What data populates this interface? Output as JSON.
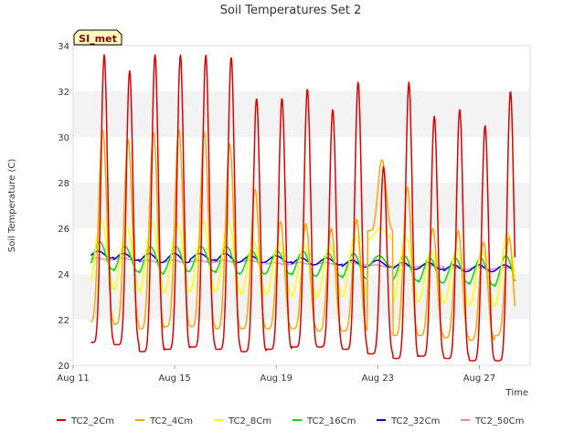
{
  "chart_data": {
    "type": "line",
    "title": "Soil Temperatures Set 2",
    "xlabel": "Time",
    "ylabel": "Soil Temperature (C)",
    "station_label": "SI_met",
    "x_range": [
      "2023-08-11",
      "2023-08-29"
    ],
    "xticks": [
      {
        "date": "2023-08-11",
        "label": "Aug 11"
      },
      {
        "date": "2023-08-15",
        "label": "Aug 15"
      },
      {
        "date": "2023-08-19",
        "label": "Aug 19"
      },
      {
        "date": "2023-08-23",
        "label": "Aug 23"
      },
      {
        "date": "2023-08-27",
        "label": "Aug 27"
      }
    ],
    "ylim": [
      20,
      34
    ],
    "yticks": [
      20,
      22,
      24,
      26,
      28,
      30,
      32,
      34
    ],
    "grid": "horizontal banded",
    "legend": "bottom",
    "series": [
      {
        "name": "TC2_2Cm",
        "color": "#dd0000",
        "max": [
          33.6,
          32.9,
          33.6,
          33.6,
          33.6,
          33.5,
          31.7,
          31.7,
          32.1,
          31.2,
          32.4,
          28.7,
          32.4,
          30.9,
          31.2,
          30.5,
          32.0
        ],
        "min": [
          21.0,
          20.9,
          20.6,
          20.7,
          20.8,
          20.7,
          20.6,
          20.7,
          20.8,
          20.8,
          20.7,
          20.5,
          20.3,
          20.4,
          20.3,
          20.2,
          20.2
        ]
      },
      {
        "name": "TC2_4Cm",
        "color": "#ffa500",
        "max": [
          30.3,
          29.9,
          30.2,
          30.3,
          30.2,
          29.7,
          27.7,
          26.3,
          26.2,
          26.0,
          26.4,
          29.0,
          27.8,
          26.0,
          25.9,
          25.4,
          25.6
        ],
        "min": [
          21.9,
          21.8,
          21.6,
          21.7,
          21.7,
          21.6,
          21.6,
          21.6,
          21.6,
          21.5,
          21.5,
          25.9,
          21.3,
          21.3,
          21.2,
          21.1,
          21.3
        ]
      },
      {
        "name": "TC2_8Cm",
        "color": "#ffff00",
        "max": [
          26.4,
          26.1,
          26.3,
          26.2,
          26.3,
          26.3,
          25.4,
          25.4,
          25.3,
          25.3,
          25.7,
          26.0,
          25.6,
          25.0,
          25.1,
          25.0,
          25.8
        ],
        "min": [
          23.4,
          23.3,
          23.2,
          23.2,
          23.2,
          23.2,
          23.1,
          23.1,
          23.0,
          23.0,
          23.0,
          25.5,
          22.8,
          22.8,
          22.7,
          22.6,
          22.6
        ]
      },
      {
        "name": "TC2_16Cm",
        "color": "#00dd00",
        "max": [
          25.4,
          25.2,
          25.2,
          25.2,
          25.2,
          25.2,
          25.0,
          25.0,
          25.0,
          24.9,
          24.9,
          24.8,
          24.8,
          24.7,
          24.7,
          24.7,
          24.8
        ],
        "min": [
          24.2,
          24.1,
          24.0,
          24.1,
          24.1,
          24.0,
          24.0,
          24.0,
          23.9,
          23.9,
          23.8,
          24.3,
          23.7,
          23.6,
          23.6,
          23.5,
          23.4
        ]
      },
      {
        "name": "TC2_32Cm",
        "color": "#0000cc",
        "max": [
          25.0,
          24.9,
          24.9,
          24.9,
          24.9,
          24.9,
          24.8,
          24.8,
          24.7,
          24.7,
          24.6,
          24.6,
          24.5,
          24.5,
          24.4,
          24.4,
          24.4
        ],
        "min": [
          24.7,
          24.6,
          24.5,
          24.5,
          24.6,
          24.5,
          24.5,
          24.5,
          24.4,
          24.4,
          24.3,
          24.3,
          24.2,
          24.2,
          24.1,
          24.1,
          24.1
        ]
      },
      {
        "name": "TC2_50Cm",
        "color": "#dd88dd",
        "max": [
          24.7,
          24.7,
          24.6,
          24.6,
          24.6,
          24.6,
          24.6,
          24.5,
          24.5,
          24.5,
          24.5,
          24.4,
          24.4,
          24.4,
          24.3,
          24.3,
          24.3
        ],
        "min": [
          24.6,
          24.6,
          24.5,
          24.5,
          24.5,
          24.5,
          24.5,
          24.4,
          24.4,
          24.4,
          24.4,
          24.3,
          24.3,
          24.3,
          24.2,
          24.2,
          24.2
        ]
      }
    ]
  }
}
